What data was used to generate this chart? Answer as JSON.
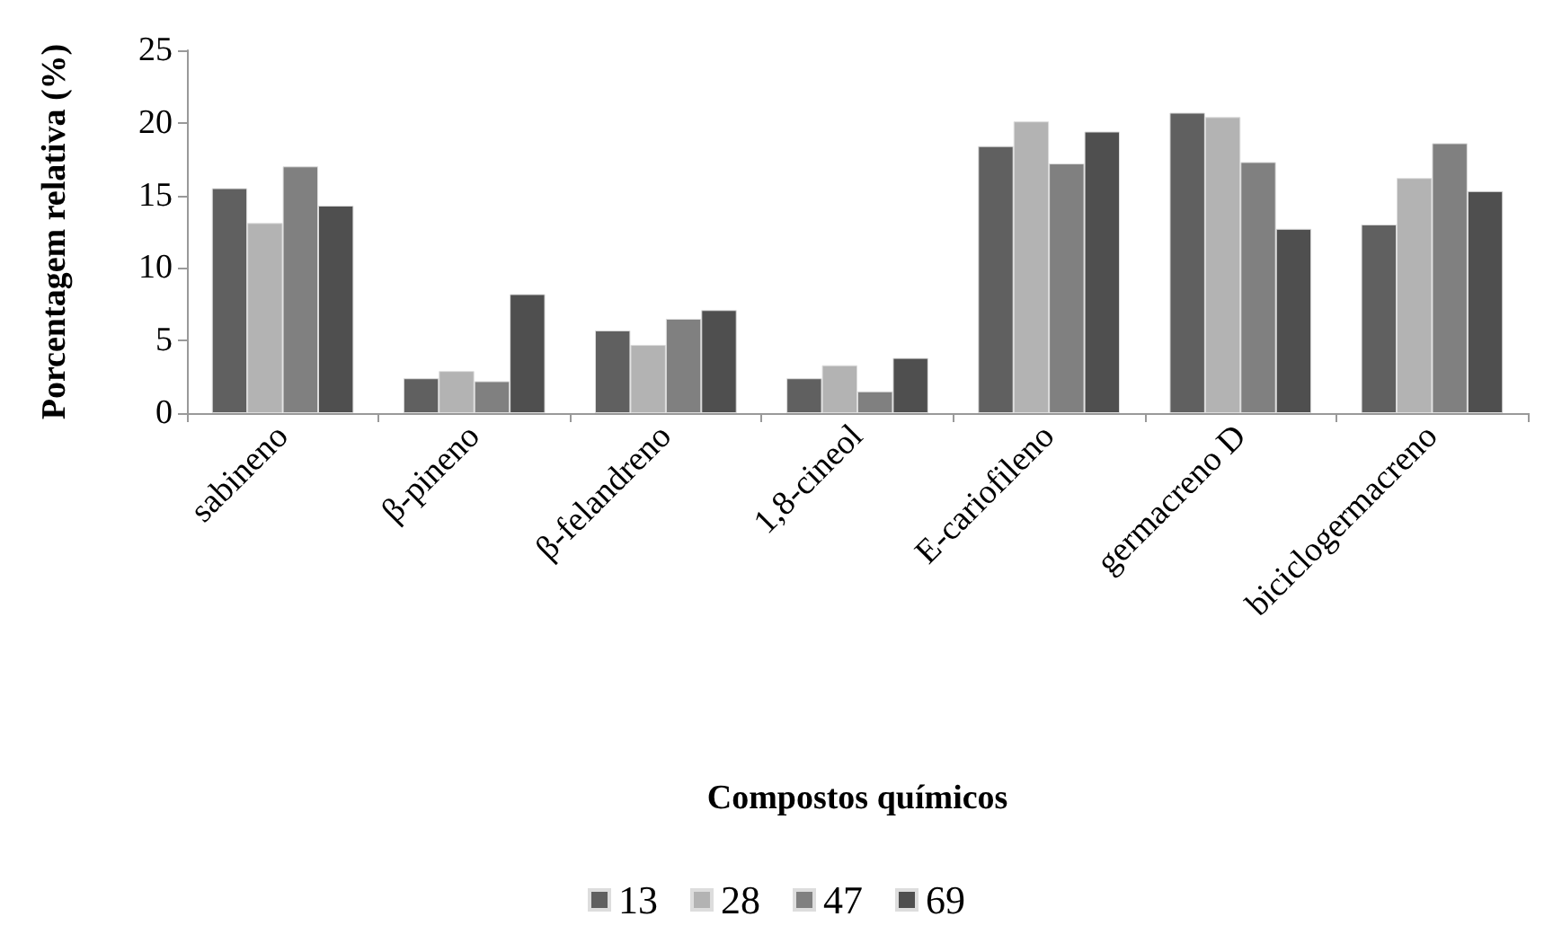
{
  "chart_data": {
    "type": "bar",
    "xlabel": "Compostos químicos",
    "ylabel": "Porcentagem relativa (%)",
    "categories": [
      "sabineno",
      "β-pineno",
      "β-felandreno",
      "1,8-cineol",
      "E-cariofileno",
      "germacreno D",
      "biciclogermacreno"
    ],
    "series": [
      {
        "name": "13",
        "color": "#606060",
        "values": [
          15.5,
          2.4,
          5.7,
          2.4,
          18.4,
          20.7,
          13.0
        ]
      },
      {
        "name": "28",
        "color": "#b3b3b3",
        "values": [
          13.1,
          2.9,
          4.7,
          3.3,
          20.1,
          20.4,
          16.2
        ]
      },
      {
        "name": "47",
        "color": "#808080",
        "values": [
          17.0,
          2.2,
          6.5,
          1.5,
          17.2,
          17.3,
          18.6
        ]
      },
      {
        "name": "69",
        "color": "#4f4f4f",
        "values": [
          14.3,
          8.2,
          7.1,
          3.8,
          19.4,
          12.7,
          15.3
        ]
      }
    ],
    "ylim": [
      0,
      25
    ],
    "yticks": [
      0,
      5,
      10,
      15,
      20,
      25
    ],
    "grid": false,
    "legend": "bottom"
  }
}
